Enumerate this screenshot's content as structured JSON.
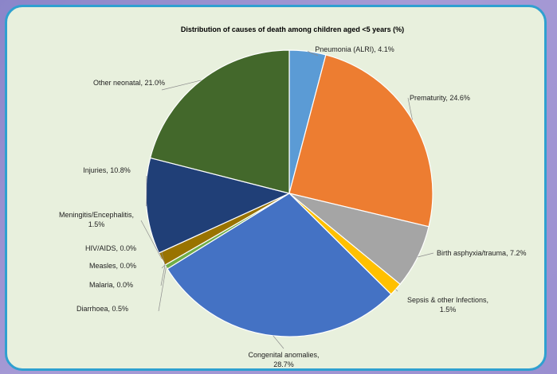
{
  "chart_data": {
    "type": "pie",
    "title": "Distribution of causes of death among children aged <5 years (%)",
    "slices": [
      {
        "name": "Pneumonia (ALRI)",
        "value": 4.1,
        "color": "#5b9bd5",
        "label_lines": [
          "Pneumonia (ALRI), 4.1%"
        ]
      },
      {
        "name": "Prematurity",
        "value": 24.6,
        "color": "#ed7d31",
        "label_lines": [
          "Prematurity, 24.6%"
        ]
      },
      {
        "name": "Birth asphyxia/trauma",
        "value": 7.2,
        "color": "#a5a5a5",
        "label_lines": [
          "Birth asphyxia/trauma, 7.2%"
        ]
      },
      {
        "name": "Sepsis & other Infections",
        "value": 1.5,
        "color": "#ffc000",
        "label_lines": [
          "Sepsis & other Infections,",
          "1.5%"
        ]
      },
      {
        "name": "Congenital anomalies",
        "value": 28.7,
        "color": "#4472c4",
        "label_lines": [
          "Congenital anomalies,",
          "28.7%"
        ]
      },
      {
        "name": "Diarrhoea",
        "value": 0.5,
        "color": "#70ad47",
        "label_lines": [
          "Diarrhoea, 0.5%"
        ]
      },
      {
        "name": "Malaria",
        "value": 0.0,
        "color": "#264478",
        "label_lines": [
          "Malaria, 0.0%"
        ]
      },
      {
        "name": "Measles",
        "value": 0.0,
        "color": "#9e480e",
        "label_lines": [
          "Measles, 0.0%"
        ]
      },
      {
        "name": "HIV/AIDS",
        "value": 0.0,
        "color": "#636363",
        "label_lines": [
          "HIV/AIDS, 0.0%"
        ]
      },
      {
        "name": "Meningitis/Encephalitis",
        "value": 1.5,
        "color": "#997300",
        "label_lines": [
          "Meningitis/Encephalitis,",
          "1.5%"
        ]
      },
      {
        "name": "Injuries",
        "value": 10.8,
        "color": "#203f77",
        "label_lines": [
          "Injuries, 10.8%"
        ]
      },
      {
        "name": "Other neonatal",
        "value": 21.0,
        "color": "#43682b",
        "label_lines": [
          "Other neonatal, 21.0%"
        ]
      }
    ]
  }
}
